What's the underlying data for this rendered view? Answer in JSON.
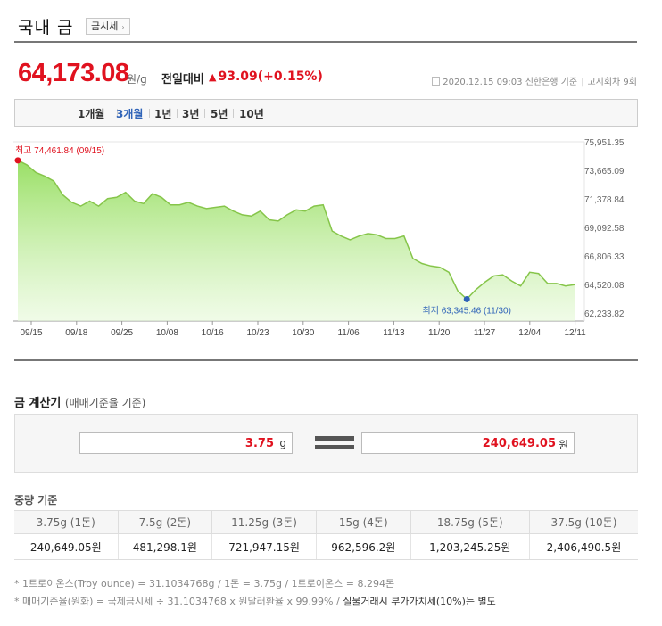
{
  "header": {
    "title": "국내 금",
    "button_label": "금시세",
    "button_arrow": "›"
  },
  "price": {
    "value": "64,173.08",
    "unit": "원/g",
    "diff_label": "전일대비",
    "diff_arrow": "▲",
    "diff_value": "93.09",
    "diff_percent": "(+0.15%)",
    "meta_date": "2020.12.15 09:03",
    "meta_bank": "신한은행 기준",
    "meta_round": "고시회차 9회"
  },
  "periods": [
    "1개월",
    "3개월",
    "1년",
    "3년",
    "5년",
    "10년"
  ],
  "active_period": "3개월",
  "chart_data": {
    "type": "area",
    "x_ticks": [
      "09/15",
      "09/18",
      "09/25",
      "10/08",
      "10/16",
      "10/23",
      "10/30",
      "11/06",
      "11/13",
      "11/20",
      "11/27",
      "12/04",
      "12/11"
    ],
    "y_ticks": [
      "75,951.35",
      "73,665.09",
      "71,378.84",
      "69,092.58",
      "66,806.33",
      "64,520.08",
      "62,233.82"
    ],
    "ylim": [
      62233.82,
      75951.35
    ],
    "max_label": "최고 74,461.84 (09/15)",
    "min_label": "최저 63,345.46 (11/30)",
    "max_value": 74461.84,
    "min_value": 63345.46,
    "values": [
      74461.84,
      74100,
      73500,
      73200,
      72800,
      71700,
      71100,
      70800,
      71200,
      70800,
      71400,
      71500,
      71900,
      71200,
      71000,
      71800,
      71500,
      70900,
      70900,
      71100,
      70800,
      70600,
      70700,
      70800,
      70400,
      70100,
      70000,
      70400,
      69700,
      69600,
      70100,
      70500,
      70400,
      70800,
      70900,
      68800,
      68400,
      68100,
      68400,
      68600,
      68500,
      68200,
      68200,
      68400,
      66600,
      66200,
      66000,
      65900,
      65500,
      64000,
      63345.46,
      64100,
      64700,
      65200,
      65300,
      64800,
      64400,
      65500,
      65400,
      64600,
      64600,
      64400,
      64500
    ],
    "line_color": "#86c54a",
    "max_marker_color": "#e0121f",
    "min_marker_color": "#2f63b8"
  },
  "calculator": {
    "title": "금 계산기",
    "subtitle": "(매매기준율 기준)",
    "weight_value": "3.75",
    "weight_unit": "g",
    "result_value": "240,649.05",
    "result_unit": "원"
  },
  "weights": {
    "title": "중량 기준",
    "headers": [
      "3.75g (1돈)",
      "7.5g (2돈)",
      "11.25g (3돈)",
      "15g (4돈)",
      "18.75g (5돈)",
      "37.5g (10돈)"
    ],
    "values": [
      "240,649.05원",
      "481,298.1원",
      "721,947.15원",
      "962,596.2원",
      "1,203,245.25원",
      "2,406,490.5원"
    ]
  },
  "notes": {
    "line1": "* 1트로이온스(Troy ounce) = 31.1034768g / 1돈 = 3.75g / 1트로이온스 = 8.294돈",
    "line2_prefix": "* 매매기준율(원화) = 국제금시세 ÷ 31.1034768 x 원달러환율 x 99.99% /",
    "line2_emph": "실물거래시 부가가치세(10%)는 별도"
  }
}
